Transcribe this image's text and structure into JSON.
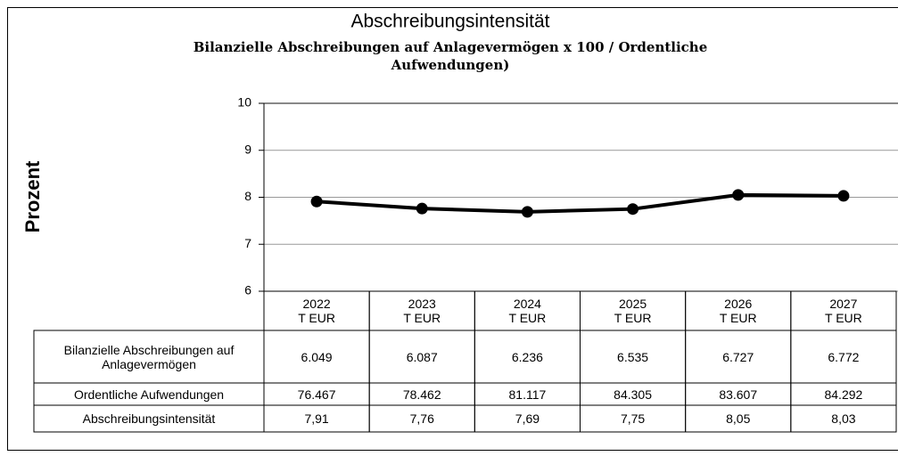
{
  "chart_data": {
    "type": "line",
    "title": "Abschreibungsintensität",
    "subtitle": "Bilanzielle Abschreibungen auf Anlagevermögen x 100 / Ordentliche Aufwendungen)",
    "y_label": "Prozent",
    "categories": [
      "2022",
      "2023",
      "2024",
      "2025",
      "2026",
      "2027"
    ],
    "category_unit": "T EUR",
    "series": [
      {
        "name": "Abschreibungsintensität",
        "color": "#000000",
        "values": [
          7.91,
          7.76,
          7.69,
          7.75,
          8.05,
          8.03
        ],
        "value_labels": [
          "7,91",
          "7,76",
          "7,69",
          "7,75",
          "8,05",
          "8,03"
        ]
      }
    ],
    "ylim": [
      6,
      10
    ],
    "yticks": [
      6,
      7,
      8,
      9,
      10
    ],
    "grid": true,
    "table": {
      "rows": [
        {
          "label": "Bilanzielle Abschreibungen auf Anlagevermögen",
          "values": [
            "6.049",
            "6.087",
            "6.236",
            "6.535",
            "6.727",
            "6.772"
          ]
        },
        {
          "label": "Ordentliche Aufwendungen",
          "values": [
            "76.467",
            "78.462",
            "81.117",
            "84.305",
            "83.607",
            "84.292"
          ]
        }
      ]
    }
  }
}
